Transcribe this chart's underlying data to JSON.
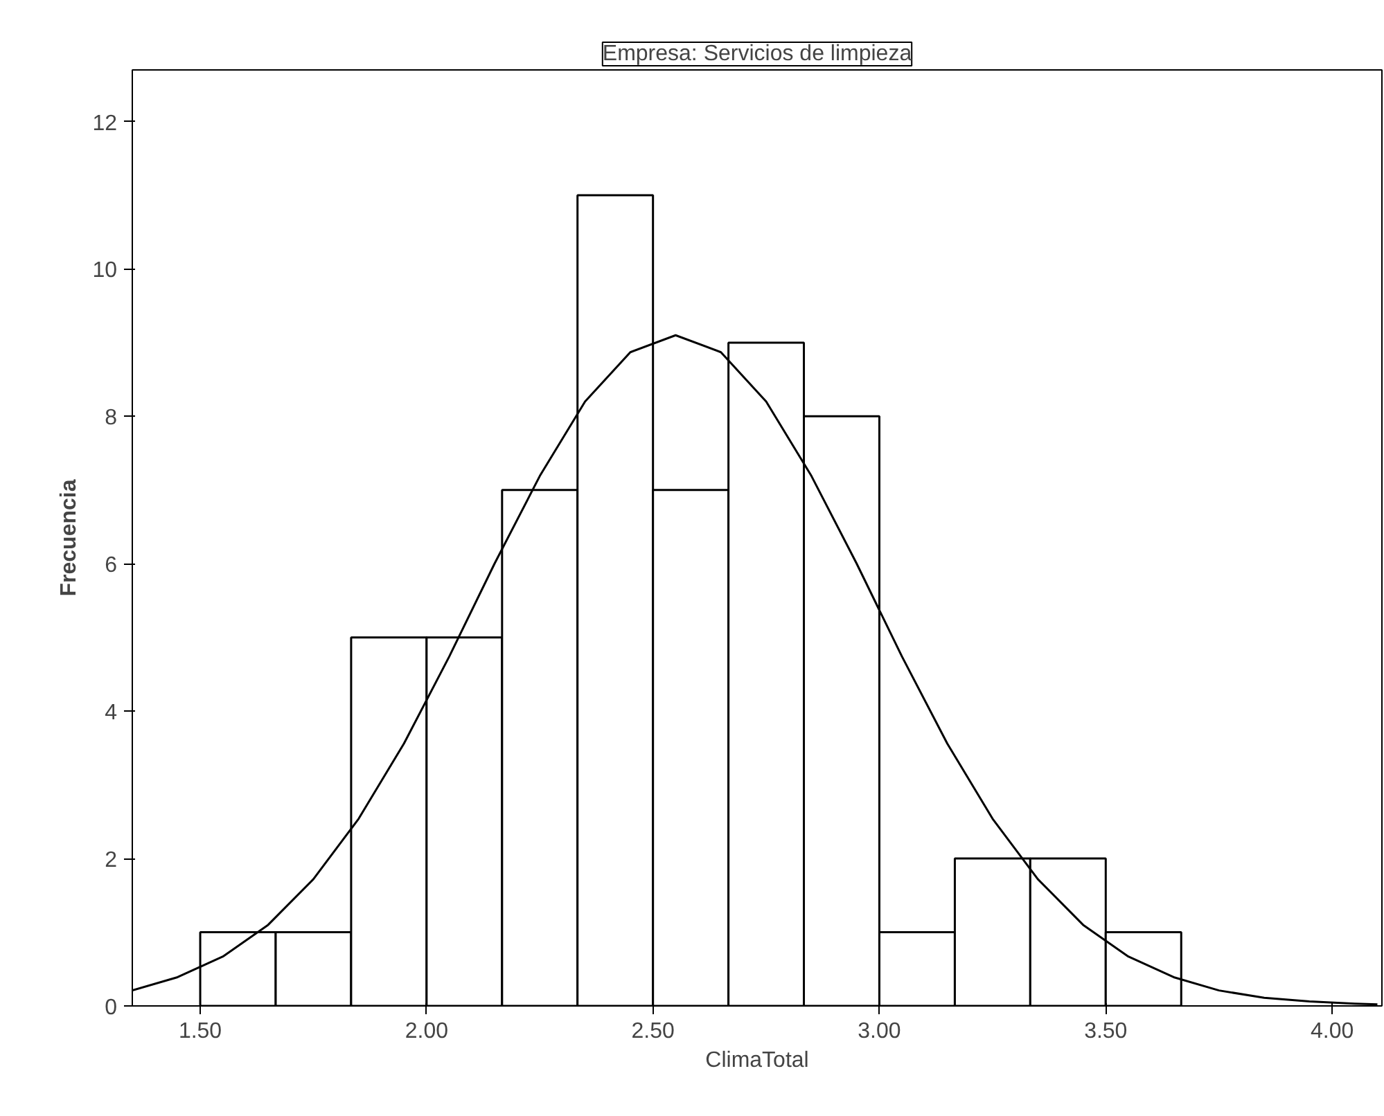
{
  "chart_data": {
    "type": "histogram",
    "title": "Empresa: Servicios de limpieza",
    "xlabel": "ClimaTotal",
    "ylabel": "Frecuencia",
    "bins": [
      1.5,
      1.6667,
      1.8333,
      2.0,
      2.1667,
      2.3333,
      2.5,
      2.6667,
      2.8333,
      3.0,
      3.1667,
      3.3333,
      3.5,
      3.6667
    ],
    "values": [
      1,
      1,
      5,
      5,
      7,
      11,
      7,
      9,
      8,
      1,
      2,
      2,
      1
    ],
    "color": "#ffffff",
    "series": [
      {
        "type": "line",
        "color": "#000000",
        "x": [
          1.35,
          1.45,
          1.55,
          1.65,
          1.75,
          1.85,
          1.95,
          2.05,
          2.15,
          2.25,
          2.35,
          2.45,
          2.55,
          2.65,
          2.75,
          2.85,
          2.95,
          3.05,
          3.15,
          3.25,
          3.35,
          3.45,
          3.55,
          3.65,
          3.75,
          3.85,
          3.95,
          4.05,
          4.1
        ],
        "values": [
          0.21,
          0.39,
          0.67,
          1.1,
          1.72,
          2.54,
          3.56,
          4.74,
          6.0,
          7.19,
          8.2,
          8.87,
          9.1,
          8.87,
          8.2,
          7.19,
          6.0,
          4.74,
          3.56,
          2.54,
          1.72,
          1.1,
          0.67,
          0.39,
          0.21,
          0.11,
          0.06,
          0.03,
          0.02
        ]
      }
    ],
    "xlim": [
      1.35,
      4.11
    ],
    "ylim": [
      0,
      12.7
    ],
    "xticks": [
      {
        "value": 1.5,
        "label": "1.50"
      },
      {
        "value": 2.0,
        "label": "2.00"
      },
      {
        "value": 2.5,
        "label": "2.50"
      },
      {
        "value": 3.0,
        "label": "3.00"
      },
      {
        "value": 3.5,
        "label": "3.50"
      },
      {
        "value": 4.0,
        "label": "4.00"
      }
    ],
    "yticks": [
      0,
      2,
      4,
      6,
      8,
      10,
      12
    ],
    "grid": false
  }
}
